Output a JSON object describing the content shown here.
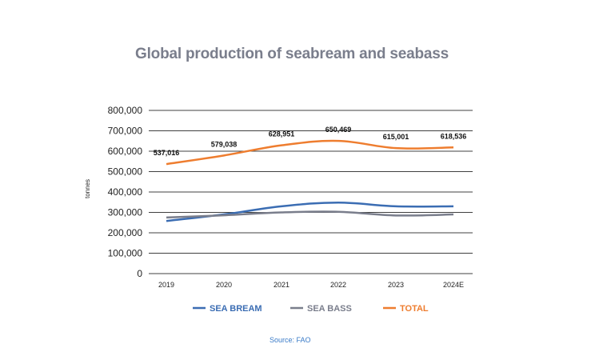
{
  "chart_data": {
    "type": "line",
    "title": "Global production of seabream and seabass",
    "ylabel": "tonnes",
    "xlabel": "",
    "categories": [
      "2019",
      "2020",
      "2021",
      "2022",
      "2023",
      "2024E"
    ],
    "ylim": [
      0,
      800000
    ],
    "yticks": [
      "0",
      "100,000",
      "200,000",
      "300,000",
      "400,000",
      "500,000",
      "600,000",
      "700,000",
      "800,000"
    ],
    "grid": true,
    "legend_position": "bottom",
    "series": [
      {
        "name": "SEA BREAM",
        "color": "#3b6db3",
        "values": [
          258000,
          290000,
          330000,
          348000,
          330000,
          330000
        ]
      },
      {
        "name": "SEA BASS",
        "color": "#7a7e8c",
        "values": [
          275000,
          286000,
          300000,
          303000,
          285000,
          290000
        ]
      },
      {
        "name": "TOTAL",
        "color": "#ee7d2f",
        "values": [
          537016,
          579038,
          628951,
          650469,
          615001,
          618536
        ],
        "labels": [
          "537,016",
          "579,038",
          "628,951",
          "650,469",
          "615,001",
          "618,536"
        ]
      }
    ],
    "source": "Source: FAO"
  }
}
